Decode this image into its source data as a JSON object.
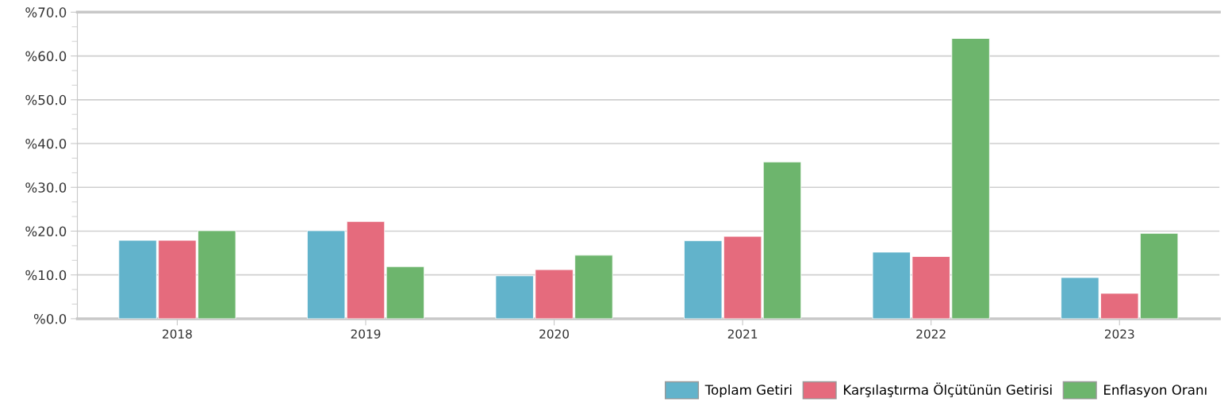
{
  "chart_data": {
    "type": "bar",
    "categories": [
      "2018",
      "2019",
      "2020",
      "2021",
      "2022",
      "2023"
    ],
    "series": [
      {
        "name": "Toplam Getiri",
        "color": "#62b3cb",
        "values": [
          17.9,
          20.1,
          9.8,
          17.8,
          15.2,
          9.4
        ]
      },
      {
        "name": "Karşılaştırma Ölçütünün Getirisi",
        "color": "#e56b7d",
        "values": [
          17.9,
          22.2,
          11.2,
          18.8,
          14.2,
          5.8
        ]
      },
      {
        "name": "Enflasyon Oranı",
        "color": "#6db56d",
        "values": [
          20.1,
          11.9,
          14.5,
          35.8,
          64.0,
          19.5
        ]
      }
    ],
    "ylim": [
      0,
      70
    ],
    "yticks": [
      {
        "value": 0,
        "label": "%0.0"
      },
      {
        "value": 10,
        "label": "%10.0"
      },
      {
        "value": 20,
        "label": "%20.0"
      },
      {
        "value": 30,
        "label": "%30.0"
      },
      {
        "value": 40,
        "label": "%40.0"
      },
      {
        "value": 50,
        "label": "%50.0"
      },
      {
        "value": 60,
        "label": "%60.0"
      },
      {
        "value": 70,
        "label": "%70.0"
      }
    ],
    "grid": "y",
    "legend": "bottom right"
  }
}
